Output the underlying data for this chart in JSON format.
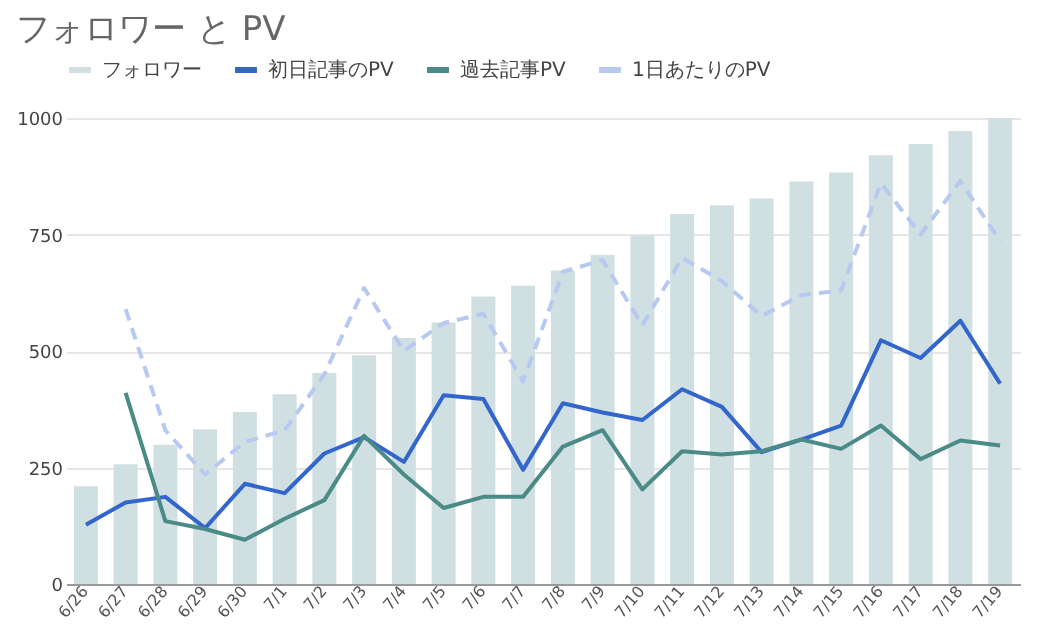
{
  "chart_data": {
    "type": "bar",
    "title": "フォロワー と PV",
    "categories": [
      "6/26",
      "6/27",
      "6/28",
      "6/29",
      "6/30",
      "7/1",
      "7/2",
      "7/3",
      "7/4",
      "7/5",
      "7/6",
      "7/7",
      "7/8",
      "7/9",
      "7/10",
      "7/11",
      "7/12",
      "7/13",
      "7/14",
      "7/15",
      "7/16",
      "7/17",
      "7/18",
      "7/19"
    ],
    "series": [
      {
        "name": "フォロワー",
        "color": "#cfdfe2",
        "values": [
          210,
          257,
          299,
          332,
          369,
          407,
          453,
          491,
          528,
          561,
          617,
          640,
          673,
          706,
          748,
          794,
          813,
          827,
          864,
          883,
          920,
          944,
          972,
          1000
        ]
      },
      {
        "name": "初日記事のPV",
        "type": "line",
        "color": "#3366cc",
        "line_style": "solid",
        "values": [
          127,
          175,
          187,
          120,
          215,
          195,
          280,
          315,
          262,
          405,
          397,
          245,
          388,
          368,
          352,
          418,
          380,
          283,
          310,
          340,
          523,
          485,
          565,
          430
        ]
      },
      {
        "name": "過去記事PV",
        "type": "line",
        "color": "#4a8a87",
        "line_style": "solid",
        "values": [
          null,
          410,
          135,
          118,
          95,
          140,
          180,
          318,
          235,
          163,
          187,
          187,
          295,
          330,
          203,
          285,
          278,
          285,
          310,
          290,
          340,
          268,
          308,
          297
        ]
      },
      {
        "name": "1日あたりのPV",
        "type": "line",
        "color": "#b7c9f0",
        "line_style": "dashed",
        "values": [
          null,
          590,
          330,
          235,
          305,
          330,
          450,
          635,
          500,
          560,
          580,
          435,
          670,
          695,
          555,
          700,
          650,
          575,
          620,
          630,
          860,
          750,
          865,
          735
        ]
      }
    ],
    "ylim": [
      0,
      1000
    ],
    "yticks": [
      0,
      250,
      500,
      750,
      1000
    ],
    "grid": "y",
    "legend": "top"
  }
}
